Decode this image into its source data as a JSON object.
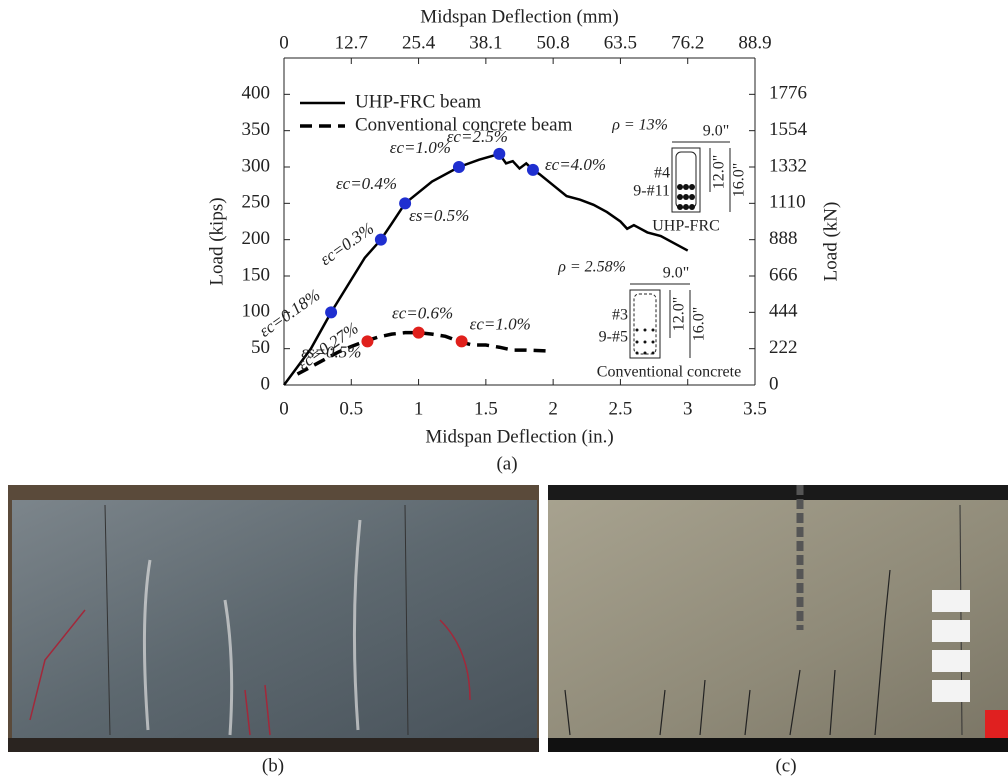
{
  "chart_data": {
    "type": "line",
    "xlabel": "Midspan Deflection (in.)",
    "x2label": "Midspan Deflection (mm)",
    "ylabel": "Load (kips)",
    "y2label": "Load (kN)",
    "xlim": [
      0,
      3.5
    ],
    "xticks": [
      0,
      0.5,
      1,
      1.5,
      2,
      2.5,
      3,
      3.5
    ],
    "x2lim": [
      0,
      88.9
    ],
    "x2ticks": [
      0,
      12.7,
      25.4,
      38.1,
      50.8,
      63.5,
      76.2,
      88.9
    ],
    "ylim": [
      0,
      450
    ],
    "yticks": [
      0,
      50,
      100,
      150,
      200,
      250,
      300,
      350,
      400
    ],
    "y2lim": [
      0,
      1998
    ],
    "y2ticks": [
      0,
      222,
      444,
      666,
      888,
      1110,
      1332,
      1554,
      1776
    ],
    "legend": "upper left",
    "series": [
      {
        "name": "UHP-FRC beam",
        "color": "#000000",
        "dash": "solid",
        "x": [
          0,
          0.1,
          0.2,
          0.35,
          0.5,
          0.6,
          0.72,
          0.8,
          0.9,
          1.0,
          1.1,
          1.3,
          1.45,
          1.6,
          1.65,
          1.7,
          1.75,
          1.8,
          1.85,
          1.9,
          2.0,
          2.1,
          2.2,
          2.3,
          2.4,
          2.5,
          2.55,
          2.6,
          2.7,
          2.8,
          2.9,
          3.0
        ],
        "values": [
          0,
          25,
          50,
          100,
          145,
          175,
          200,
          222,
          250,
          265,
          280,
          300,
          310,
          318,
          305,
          308,
          298,
          305,
          296,
          290,
          275,
          260,
          255,
          248,
          238,
          225,
          215,
          220,
          210,
          205,
          195,
          185
        ]
      },
      {
        "name": "Conventional concrete beam",
        "color": "#000000",
        "dash": "dashed",
        "x": [
          0.1,
          0.2,
          0.3,
          0.4,
          0.5,
          0.6,
          0.7,
          0.8,
          0.9,
          1.0,
          1.1,
          1.2,
          1.3,
          1.4,
          1.5,
          1.6,
          1.7,
          1.8,
          1.95
        ],
        "values": [
          15,
          25,
          35,
          45,
          53,
          60,
          66,
          70,
          72,
          72,
          70,
          67,
          60,
          55,
          55,
          52,
          48,
          48,
          47
        ]
      }
    ],
    "annotations": [
      {
        "x": 0.35,
        "y": 100,
        "color": "#1f2fd0",
        "text_color": "#1f3a8a",
        "labels": [
          "εc=0.18%"
        ]
      },
      {
        "x": 0.72,
        "y": 200,
        "color": "#1f2fd0",
        "text_color": "#1f3a8a",
        "labels": [
          "εc=0.3%"
        ]
      },
      {
        "x": 0.9,
        "y": 250,
        "color": "#1f2fd0",
        "text_color": "#1f3a8a",
        "labels": [
          "εc=0.4%",
          "εs=0.5%"
        ]
      },
      {
        "x": 1.3,
        "y": 300,
        "color": "#1f2fd0",
        "text_color": "#1f3a8a",
        "labels": [
          "εc=1.0%"
        ]
      },
      {
        "x": 1.6,
        "y": 318,
        "color": "#1f2fd0",
        "text_color": "#1f3a8a",
        "labels": [
          "εc=2.5%"
        ]
      },
      {
        "x": 1.85,
        "y": 296,
        "color": "#1f2fd0",
        "text_color": "#1f3a8a",
        "labels": [
          "εc=4.0%"
        ]
      },
      {
        "x": 0.62,
        "y": 60,
        "color": "#e0201c",
        "text_color": "#e0201c",
        "labels": [
          "εc=0.27%",
          "εs=0.5%"
        ]
      },
      {
        "x": 1.0,
        "y": 72,
        "color": "#e0201c",
        "text_color": "#e0201c",
        "labels": [
          "εc=0.6%"
        ]
      },
      {
        "x": 1.32,
        "y": 60,
        "color": "#e0201c",
        "text_color": "#e0201c",
        "labels": [
          "εc=1.0%"
        ]
      }
    ],
    "insets": [
      {
        "ratio": "ρ = 13%",
        "width": "9.0\"",
        "stirrup": "#4",
        "bars": "9-#11",
        "depth": "12.0\"",
        "height": "16.0\"",
        "name": "UHP-FRC"
      },
      {
        "ratio": "ρ = 2.58%",
        "width": "9.0\"",
        "stirrup": "#3",
        "bars": "9-#5",
        "depth": "12.0\"",
        "height": "16.0\"",
        "name": "Conventional concrete"
      }
    ],
    "captions": [
      "(a)",
      "(b)",
      "(c)"
    ]
  }
}
